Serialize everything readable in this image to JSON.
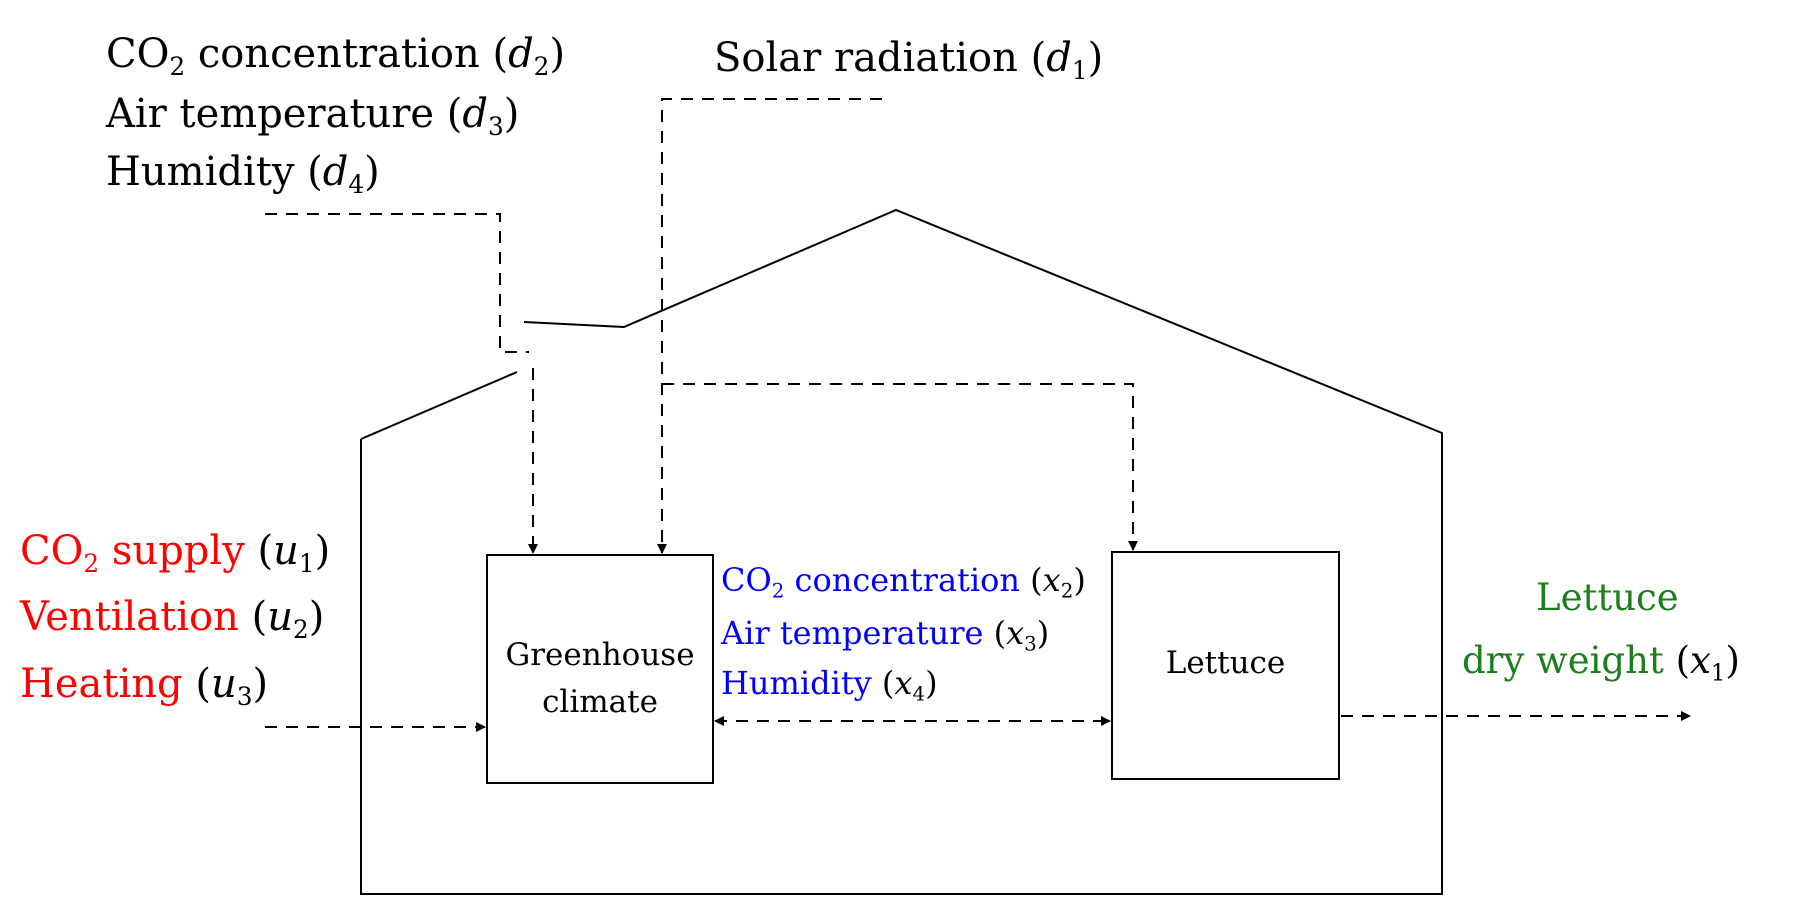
{
  "disturbances": {
    "co2_concentration": {
      "name": "CO",
      "sub": "2",
      "rest": " concentration (",
      "sym": "d",
      "idx": "2",
      "close": ")"
    },
    "air_temperature": {
      "name": "Air temperature (",
      "sym": "d",
      "idx": "3",
      "close": ")"
    },
    "humidity": {
      "name": "Humidity (",
      "sym": "d",
      "idx": "4",
      "close": ")"
    },
    "solar_radiation": {
      "name": "Solar radiation (",
      "sym": "d",
      "idx": "1",
      "close": ")"
    }
  },
  "inputs": {
    "co2_supply": {
      "name": "CO",
      "sub": "2",
      "rest": " supply",
      "open": " (",
      "sym": "u",
      "idx": "1",
      "close": ")"
    },
    "ventilation": {
      "name": "Ventilation",
      "open": " (",
      "sym": "u",
      "idx": "2",
      "close": ")"
    },
    "heating": {
      "name": "Heating",
      "open": " (",
      "sym": "u",
      "idx": "3",
      "close": ")"
    }
  },
  "states": {
    "co2_concentration": {
      "name": "CO",
      "sub": "2",
      "rest": " concentration",
      "open": " (",
      "sym": "x",
      "idx": "2",
      "close": ")"
    },
    "air_temperature": {
      "name": "Air temperature",
      "open": " (",
      "sym": "x",
      "idx": "3",
      "close": ")"
    },
    "humidity": {
      "name": "Humidity",
      "open": " (",
      "sym": "x",
      "idx": "4",
      "close": ")"
    }
  },
  "blocks": {
    "greenhouse_climate": {
      "line1": "Greenhouse",
      "line2": "climate"
    },
    "lettuce": {
      "label": "Lettuce"
    }
  },
  "output": {
    "line1": "Lettuce",
    "line2": "dry weight",
    "open": " (",
    "sym": "x",
    "idx": "1",
    "close": ")"
  },
  "colors": {
    "inputs": "#ff0000",
    "states": "#0000ff",
    "output": "#1a7f1a",
    "lines": "#000000"
  }
}
